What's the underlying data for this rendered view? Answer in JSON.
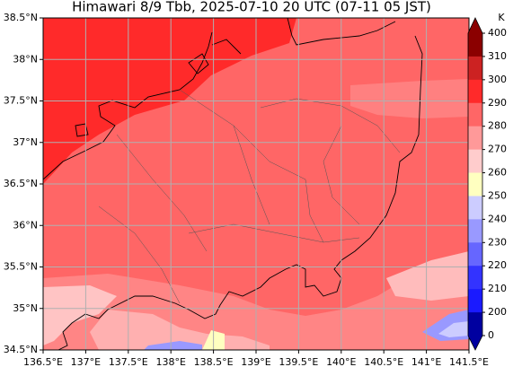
{
  "title": "Himawari 8/9 Tbb, 2025-07-10 20 UTC (07-11 05 JST)",
  "map": {
    "lat_ticks": [
      "38.5°N",
      "38°N",
      "37.5°N",
      "37°N",
      "36.5°N",
      "36°N",
      "35.5°N",
      "35°N",
      "34.5°N"
    ],
    "lon_ticks": [
      "136.5°E",
      "137°E",
      "137.5°E",
      "138°E",
      "138.5°E",
      "139°E",
      "139.5°E",
      "140°E",
      "140.5°E",
      "141°E",
      "141.5°E"
    ]
  },
  "colorbar": {
    "unit": "K",
    "labels": [
      400,
      310,
      300,
      290,
      280,
      270,
      260,
      250,
      240,
      230,
      220,
      210,
      200,
      0
    ]
  }
}
